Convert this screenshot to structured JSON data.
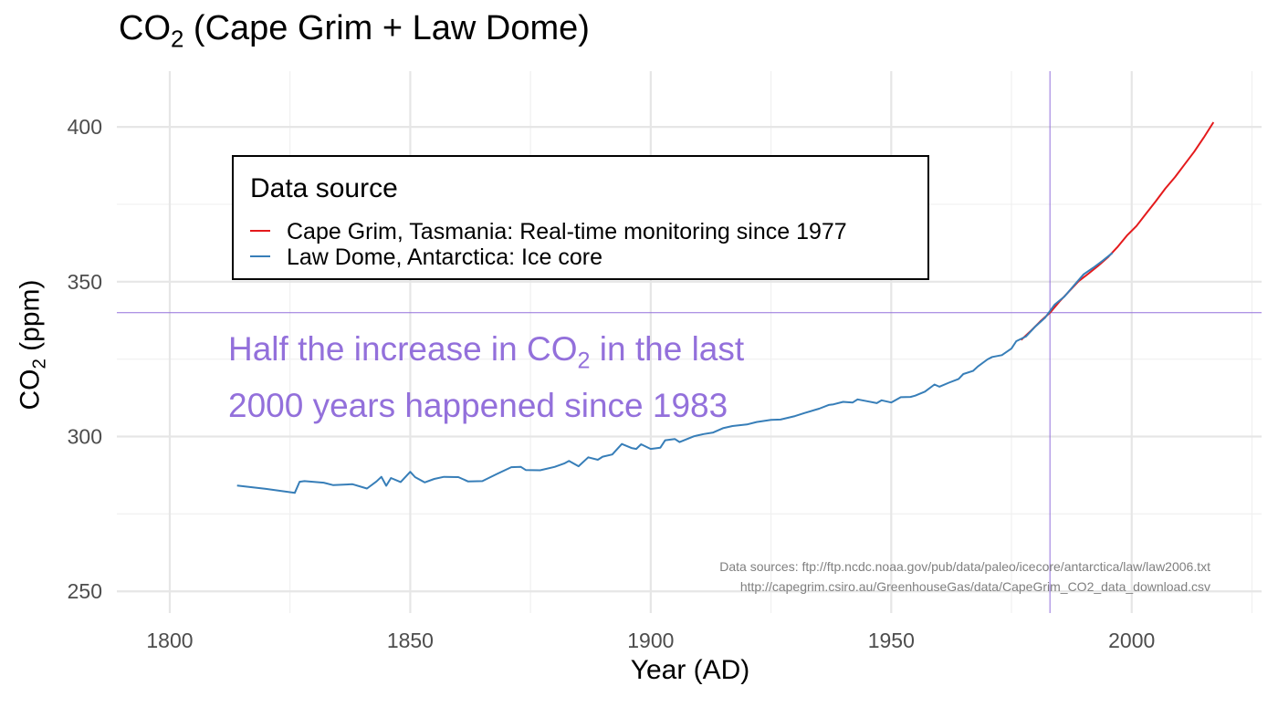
{
  "chart_data": {
    "type": "line",
    "title": {
      "main": "CO",
      "sub": "2",
      "rest": " (Cape Grim + Law Dome)"
    },
    "xlabel": "Year (AD)",
    "ylabel": {
      "main": "CO",
      "sub": "2",
      "rest": " (ppm)"
    },
    "xlim": [
      1789,
      2027
    ],
    "ylim": [
      243,
      418
    ],
    "x_ticks": [
      1800,
      1850,
      1900,
      1950,
      2000
    ],
    "y_ticks": [
      250,
      300,
      350,
      400
    ],
    "grid": true,
    "legend": {
      "title": "Data source",
      "position": "top-left",
      "entries": [
        {
          "label": "Cape Grim, Tasmania: Real-time monitoring since 1977",
          "color": "#e41a1c"
        },
        {
          "label": "Law Dome, Antarctica: Ice core",
          "color": "#377eb8"
        }
      ]
    },
    "reference_lines": {
      "vline_x": 1983,
      "hline_y": 340,
      "color": "#9370db"
    },
    "annotation": {
      "line1": {
        "pre": "Half the increase in CO",
        "sub": "2",
        "post": " in the last"
      },
      "line2": "2000 years happened since 1983",
      "color": "#9370db"
    },
    "caption": [
      "Data sources: ftp://ftp.ncdc.noaa.gov/pub/data/paleo/icecore/antarctica/law/law2006.txt",
      "http://capegrim.csiro.au/GreenhouseGas/data/CapeGrim_CO2_data_download.csv"
    ],
    "series": [
      {
        "name": "Law Dome, Antarctica: Ice core",
        "color": "#377eb8",
        "x": [
          1814,
          1820,
          1826,
          1827,
          1828,
          1832,
          1834,
          1838,
          1841,
          1843,
          1844,
          1845,
          1846,
          1848,
          1850,
          1851,
          1853,
          1855,
          1857,
          1860,
          1862,
          1865,
          1868,
          1871,
          1873,
          1874,
          1877,
          1880,
          1882,
          1883,
          1885,
          1887,
          1889,
          1890,
          1892,
          1894,
          1896,
          1897,
          1898,
          1900,
          1902,
          1903,
          1905,
          1906,
          1909,
          1911,
          1913,
          1915,
          1917,
          1920,
          1922,
          1925,
          1927,
          1930,
          1932,
          1935,
          1937,
          1938,
          1940,
          1942,
          1943,
          1945,
          1947,
          1948,
          1950,
          1952,
          1954,
          1955,
          1957,
          1959,
          1960,
          1962,
          1964,
          1965,
          1967,
          1968,
          1970,
          1971,
          1973,
          1975,
          1976,
          1978,
          1980,
          1982,
          1984,
          1986,
          1988,
          1990,
          1992,
          1994,
          1996
        ],
        "y": [
          284.2,
          283.1,
          281.8,
          285.4,
          285.6,
          285.1,
          284.3,
          284.6,
          283.2,
          285.5,
          287.0,
          284.1,
          286.6,
          285.3,
          288.6,
          286.9,
          285.2,
          286.3,
          287.0,
          286.9,
          285.5,
          285.6,
          287.9,
          290.1,
          290.2,
          289.2,
          289.1,
          290.2,
          291.3,
          292.1,
          290.4,
          293.3,
          292.5,
          293.5,
          294.2,
          297.6,
          296.3,
          296.0,
          297.5,
          296.0,
          296.4,
          298.8,
          299.2,
          298.2,
          300.1,
          300.8,
          301.3,
          302.7,
          303.4,
          303.9,
          304.7,
          305.4,
          305.5,
          306.6,
          307.6,
          309.0,
          310.2,
          310.4,
          311.2,
          311.0,
          312.0,
          311.4,
          310.8,
          311.7,
          311.0,
          312.7,
          312.8,
          313.2,
          314.5,
          316.8,
          316.1,
          317.4,
          318.6,
          320.2,
          321.2,
          322.6,
          324.9,
          325.7,
          326.3,
          328.4,
          330.8,
          332.3,
          335.6,
          338.4,
          342.6,
          345.2,
          348.8,
          352.4,
          354.5,
          356.8,
          359.3
        ]
      },
      {
        "name": "Cape Grim, Tasmania: Real-time monitoring since 1977",
        "color": "#e41a1c",
        "x": [
          1977,
          1979,
          1981,
          1983,
          1985,
          1987,
          1989,
          1991,
          1993,
          1995,
          1997,
          1999,
          2001,
          2003,
          2005,
          2007,
          2009,
          2011,
          2013,
          2015,
          2017
        ],
        "y": [
          331.2,
          334.1,
          337.2,
          340.0,
          343.6,
          346.9,
          350.2,
          352.6,
          355.1,
          357.8,
          361.1,
          364.9,
          368.0,
          372.0,
          376.0,
          380.1,
          383.8,
          387.9,
          392.0,
          396.6,
          401.5
        ]
      }
    ]
  }
}
